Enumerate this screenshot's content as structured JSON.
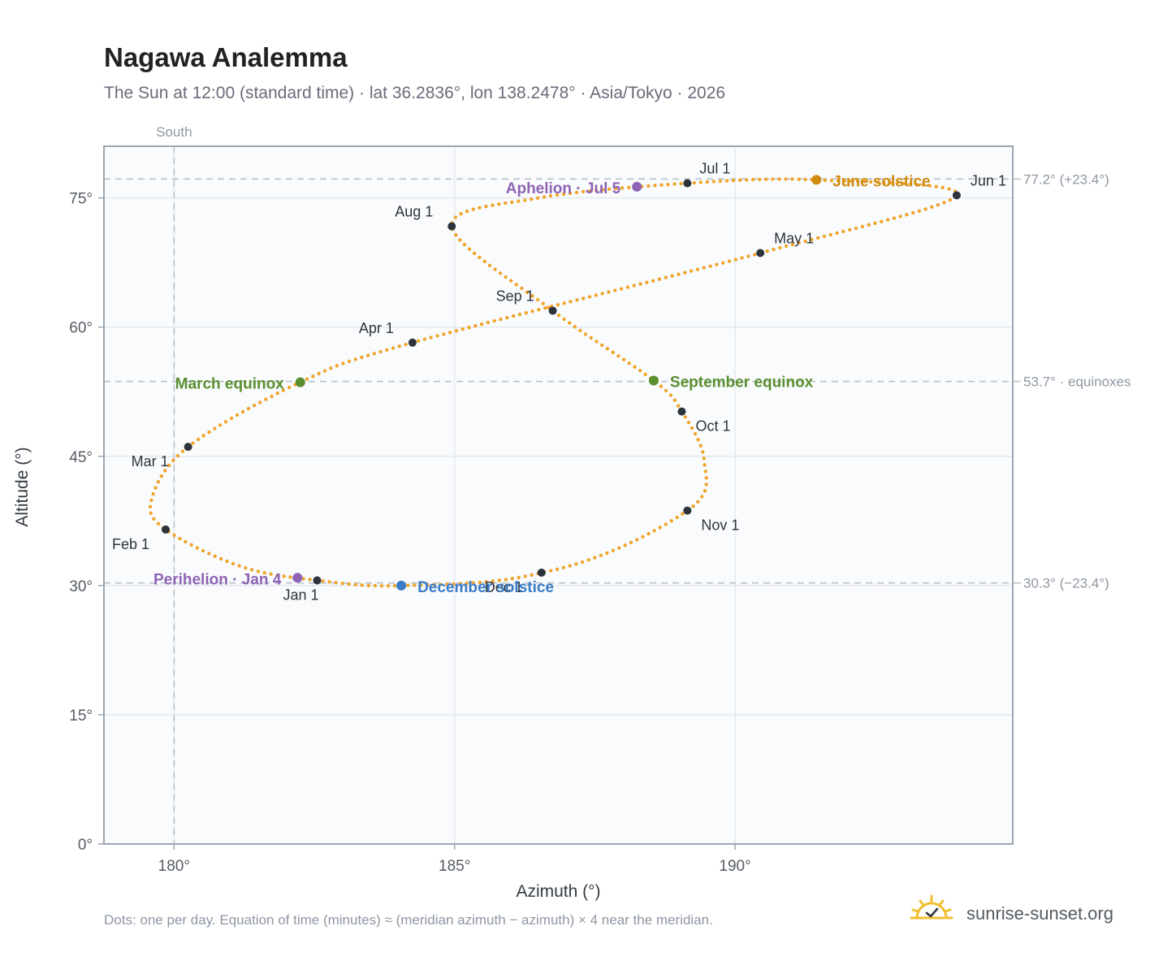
{
  "header": {
    "title": "Nagawa Analemma",
    "subtitle": "The Sun at 12:00 (standard time) · lat 36.2836°, lon 138.2478° · Asia/Tokyo · 2026"
  },
  "footer": {
    "note": "Dots: one per day. Equation of time (minutes) ≈ (meridian azimuth − azimuth) × 4 near the meridian.",
    "brand": "sunrise-sunset.org"
  },
  "colors": {
    "curve": "#f0a52c",
    "month_marker": "#2d333b",
    "equinox": "#5a8f2e",
    "june_solstice": "#d08c10",
    "december_solstice": "#3a7cc8",
    "apsis": "#8e63b5",
    "reference_line": "#b9c3cc",
    "grid": "#e4e8ee",
    "plot_bg": "#f9fbfd",
    "frame": "#9aa6b4"
  },
  "chart_data": {
    "type": "scatter",
    "xlabel": "Azimuth (°)",
    "ylabel": "Altitude (°)",
    "xlim": [
      178.75,
      194.95
    ],
    "ylim": [
      0,
      81
    ],
    "xticks": [
      180,
      185,
      190
    ],
    "xtick_labels": [
      "180°",
      "185°",
      "190°"
    ],
    "yticks": [
      0,
      15,
      30,
      45,
      60,
      75
    ],
    "ytick_labels": [
      "0°",
      "15°",
      "30°",
      "45°",
      "60°",
      "75°"
    ],
    "grid": true,
    "meridian": {
      "azimuth": 180,
      "label": "South"
    },
    "reference_lines": [
      {
        "altitude": 77.2,
        "label": "77.2° (+23.4°)"
      },
      {
        "altitude": 53.7,
        "label": "53.7° · equinoxes"
      },
      {
        "altitude": 30.3,
        "label": "30.3° (−23.4°)"
      }
    ],
    "month_markers": [
      {
        "label": "Jan 1",
        "az": 182.55,
        "alt": 30.6
      },
      {
        "label": "Feb 1",
        "az": 179.85,
        "alt": 36.5
      },
      {
        "label": "Mar 1",
        "az": 180.25,
        "alt": 46.1
      },
      {
        "label": "Apr 1",
        "az": 184.25,
        "alt": 58.2
      },
      {
        "label": "May 1",
        "az": 190.45,
        "alt": 68.6
      },
      {
        "label": "Jun 1",
        "az": 193.95,
        "alt": 75.3
      },
      {
        "label": "Jul 1",
        "az": 189.15,
        "alt": 76.7
      },
      {
        "label": "Aug 1",
        "az": 184.95,
        "alt": 71.7
      },
      {
        "label": "Sep 1",
        "az": 186.75,
        "alt": 61.9
      },
      {
        "label": "Oct 1",
        "az": 189.05,
        "alt": 50.2
      },
      {
        "label": "Nov 1",
        "az": 189.15,
        "alt": 38.7
      },
      {
        "label": "Dec 1",
        "az": 186.55,
        "alt": 31.5
      }
    ],
    "events": [
      {
        "label": "March equinox",
        "az": 182.25,
        "alt": 53.6,
        "color_key": "equinox"
      },
      {
        "label": "June solstice",
        "az": 191.45,
        "alt": 77.1,
        "color_key": "june_solstice"
      },
      {
        "label": "September equinox",
        "az": 188.55,
        "alt": 53.8,
        "color_key": "equinox"
      },
      {
        "label": "December solstice",
        "az": 184.05,
        "alt": 30.0,
        "color_key": "december_solstice"
      },
      {
        "label": "Perihelion · Jan 4",
        "az": 182.2,
        "alt": 30.9,
        "color_key": "apsis"
      },
      {
        "label": "Aphelion · Jul 5",
        "az": 188.25,
        "alt": 76.3,
        "color_key": "apsis"
      }
    ],
    "curve_keypoints": [
      [
        184.05,
        30.0
      ],
      [
        182.55,
        30.6
      ],
      [
        181.2,
        32.2
      ],
      [
        179.85,
        36.5
      ],
      [
        179.6,
        40.0
      ],
      [
        180.25,
        46.1
      ],
      [
        182.25,
        53.6
      ],
      [
        184.25,
        58.2
      ],
      [
        190.45,
        68.6
      ],
      [
        193.95,
        75.3
      ],
      [
        191.45,
        77.1
      ],
      [
        189.15,
        76.7
      ],
      [
        186.5,
        75.0
      ],
      [
        184.95,
        71.7
      ],
      [
        186.75,
        61.9
      ],
      [
        188.55,
        53.8
      ],
      [
        189.05,
        50.2
      ],
      [
        189.45,
        44.5
      ],
      [
        189.15,
        38.7
      ],
      [
        186.55,
        31.5
      ],
      [
        184.05,
        30.0
      ]
    ]
  }
}
